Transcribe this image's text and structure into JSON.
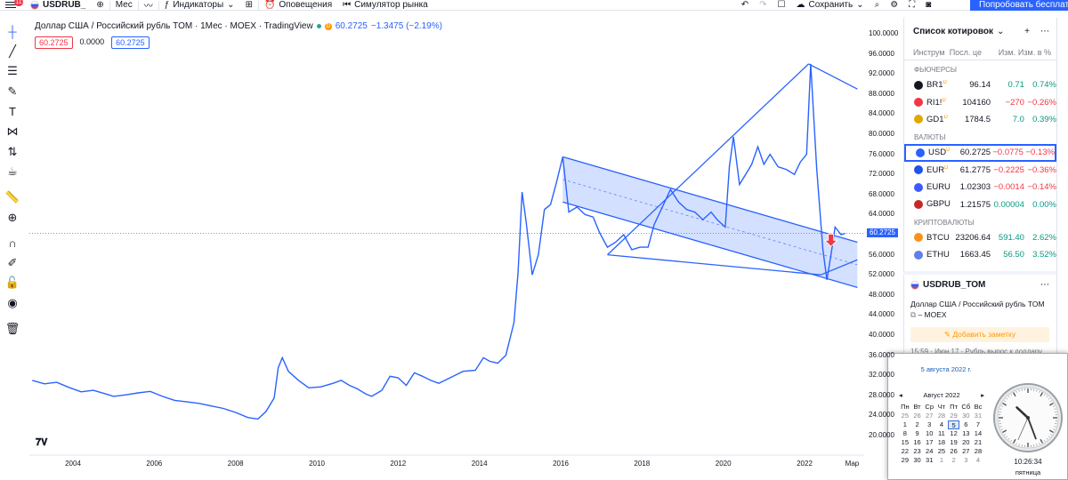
{
  "topbar": {
    "notifications_badge": "11",
    "symbol": "USDRUB_",
    "interval": "Мес",
    "indicators_label": "Индикаторы",
    "alerts_label": "Оповещения",
    "replay_label": "Симулятор рынка",
    "save_label": "Сохранить",
    "try_button_label": "Попробовать бесплатно"
  },
  "legend": {
    "title": "Доллар США / Российский рубль TOM · 1Мес · MOEX · TradingView",
    "live_badge": "D",
    "last": "60.2725",
    "change": "−1.3475 (−2.19%)",
    "bid": "60.2725",
    "spread": "0.0000",
    "ask": "60.2725"
  },
  "chart_data": {
    "type": "line",
    "title": "Доллар США / Российский рубль TOM · 1Мес · MOEX · TradingView",
    "x_tick_labels": [
      "2004",
      "2006",
      "2008",
      "2010",
      "2012",
      "2014",
      "2016",
      "2018",
      "2020",
      "2022",
      "Мар"
    ],
    "x_ticks": [
      2004,
      2006,
      2008,
      2010,
      2012,
      2014,
      2016,
      2018,
      2020,
      2022,
      2023.17
    ],
    "y_tick_labels": [
      "100.0000",
      "96.0000",
      "92.0000",
      "88.0000",
      "84.0000",
      "80.0000",
      "76.0000",
      "72.0000",
      "68.0000",
      "64.0000",
      "60.0000",
      "56.0000",
      "52.0000",
      "48.0000",
      "44.0000",
      "40.0000",
      "36.0000",
      "32.0000",
      "28.0000",
      "24.0000",
      "20.0000"
    ],
    "ylim": [
      18,
      100
    ],
    "xlim": [
      2002.7,
      2023.5
    ],
    "current_price_label": "60.2725",
    "current_price": 60.2725,
    "series": [
      {
        "values": [
          [
            2003.0,
            31.0
          ],
          [
            2003.3,
            30.3
          ],
          [
            2003.6,
            30.6
          ],
          [
            2003.9,
            29.6
          ],
          [
            2004.2,
            28.7
          ],
          [
            2004.5,
            29.0
          ],
          [
            2004.8,
            28.3
          ],
          [
            2005.0,
            27.8
          ],
          [
            2005.3,
            28.1
          ],
          [
            2005.6,
            28.5
          ],
          [
            2005.9,
            28.8
          ],
          [
            2006.2,
            27.8
          ],
          [
            2006.5,
            27.0
          ],
          [
            2006.8,
            26.7
          ],
          [
            2007.1,
            26.4
          ],
          [
            2007.4,
            25.9
          ],
          [
            2007.7,
            25.4
          ],
          [
            2008.0,
            24.6
          ],
          [
            2008.3,
            23.6
          ],
          [
            2008.55,
            23.3
          ],
          [
            2008.75,
            24.8
          ],
          [
            2008.95,
            27.5
          ],
          [
            2009.05,
            33.5
          ],
          [
            2009.15,
            35.5
          ],
          [
            2009.3,
            32.8
          ],
          [
            2009.55,
            31.0
          ],
          [
            2009.8,
            29.5
          ],
          [
            2010.1,
            29.7
          ],
          [
            2010.4,
            30.4
          ],
          [
            2010.6,
            31.0
          ],
          [
            2010.8,
            30.0
          ],
          [
            2011.0,
            29.3
          ],
          [
            2011.2,
            28.3
          ],
          [
            2011.35,
            27.8
          ],
          [
            2011.6,
            29.0
          ],
          [
            2011.8,
            31.8
          ],
          [
            2012.0,
            31.5
          ],
          [
            2012.2,
            30.0
          ],
          [
            2012.4,
            32.5
          ],
          [
            2012.6,
            31.8
          ],
          [
            2012.8,
            31.0
          ],
          [
            2013.0,
            30.4
          ],
          [
            2013.3,
            31.6
          ],
          [
            2013.6,
            32.8
          ],
          [
            2013.9,
            33.0
          ],
          [
            2014.1,
            35.5
          ],
          [
            2014.25,
            34.8
          ],
          [
            2014.45,
            34.4
          ],
          [
            2014.65,
            36.0
          ],
          [
            2014.85,
            42.5
          ],
          [
            2014.95,
            52.5
          ],
          [
            2015.05,
            68.5
          ],
          [
            2015.15,
            62.5
          ],
          [
            2015.3,
            52.0
          ],
          [
            2015.45,
            56.0
          ],
          [
            2015.6,
            65.0
          ],
          [
            2015.75,
            66.0
          ],
          [
            2015.9,
            70.5
          ],
          [
            2016.05,
            75.5
          ],
          [
            2016.2,
            64.5
          ],
          [
            2016.4,
            65.5
          ],
          [
            2016.6,
            64.0
          ],
          [
            2016.8,
            63.5
          ],
          [
            2016.95,
            60.5
          ],
          [
            2017.15,
            57.5
          ],
          [
            2017.35,
            58.5
          ],
          [
            2017.55,
            60.0
          ],
          [
            2017.75,
            57.0
          ],
          [
            2017.95,
            57.5
          ],
          [
            2018.15,
            57.5
          ],
          [
            2018.3,
            62.0
          ],
          [
            2018.5,
            65.5
          ],
          [
            2018.7,
            69.0
          ],
          [
            2018.9,
            66.5
          ],
          [
            2019.1,
            65.0
          ],
          [
            2019.3,
            64.5
          ],
          [
            2019.5,
            63.0
          ],
          [
            2019.7,
            64.5
          ],
          [
            2019.85,
            63.0
          ],
          [
            2020.05,
            61.5
          ],
          [
            2020.15,
            73.5
          ],
          [
            2020.25,
            79.5
          ],
          [
            2020.4,
            70.0
          ],
          [
            2020.55,
            72.0
          ],
          [
            2020.7,
            74.0
          ],
          [
            2020.85,
            77.5
          ],
          [
            2021.0,
            74.0
          ],
          [
            2021.15,
            76.0
          ],
          [
            2021.35,
            73.5
          ],
          [
            2021.55,
            73.0
          ],
          [
            2021.75,
            72.0
          ],
          [
            2021.9,
            74.5
          ],
          [
            2022.05,
            76.0
          ],
          [
            2022.15,
            94.0
          ],
          [
            2022.3,
            73.0
          ],
          [
            2022.45,
            57.0
          ],
          [
            2022.55,
            51.0
          ],
          [
            2022.65,
            56.0
          ],
          [
            2022.75,
            61.5
          ],
          [
            2022.9,
            60.0
          ],
          [
            2023.0,
            60.2725
          ]
        ]
      }
    ],
    "drawings": {
      "channel_upper": [
        [
          2016.05,
          75.5
        ],
        [
          2023.3,
          58.5
        ]
      ],
      "channel_lower": [
        [
          2016.05,
          66.5
        ],
        [
          2023.3,
          49.5
        ]
      ],
      "channel_mid": [
        [
          2016.05,
          71.0
        ],
        [
          2023.3,
          54.0
        ]
      ],
      "trend_a": [
        [
          2017.15,
          56.0
        ],
        [
          2022.1,
          94.0
        ]
      ],
      "trend_b": [
        [
          2022.1,
          94.0
        ],
        [
          2023.3,
          89.0
        ]
      ],
      "trend_c": [
        [
          2017.15,
          56.0
        ],
        [
          2022.4,
          52.0
        ]
      ],
      "trend_d": [
        [
          2022.4,
          52.0
        ],
        [
          2023.3,
          55.0
        ]
      ],
      "arrow_down": [
        2022.65,
        58.0
      ]
    }
  },
  "watchlist": {
    "title": "Список котировок",
    "columns": [
      "Инструм",
      "Посл. це",
      "Изм.",
      "Изм. в %"
    ],
    "sections": [
      {
        "name": "ФЬЮЧЕРСЫ",
        "rows": [
          {
            "icon_color": "#131722",
            "symbol": "BR1",
            "badge": "D",
            "last": "96.14",
            "chg": "0.71",
            "pct": "0.74%",
            "dir": "up"
          },
          {
            "icon_color": "#f23645",
            "symbol": "RI1!",
            "badge": "D",
            "last": "104160",
            "chg": "−270",
            "pct": "−0.26%",
            "dir": "down"
          },
          {
            "icon_color": "#e0a800",
            "symbol": "GD1",
            "badge": "D",
            "last": "1784.5",
            "chg": "7.0",
            "pct": "0.39%",
            "dir": "up"
          }
        ]
      },
      {
        "name": "ВАЛЮТЫ",
        "rows": [
          {
            "icon_color": "#2962ff",
            "symbol": "USD",
            "badge": "D",
            "last": "60.2725",
            "chg": "−0.0775",
            "pct": "−0.13%",
            "dir": "down",
            "selected": true
          },
          {
            "icon_color": "#1e53e5",
            "symbol": "EUR",
            "badge": "D",
            "last": "61.2775",
            "chg": "−0.2225",
            "pct": "−0.36%",
            "dir": "down"
          },
          {
            "icon_color": "#3d5afe",
            "symbol": "EURU",
            "badge": "",
            "last": "1.02303",
            "chg": "−0.0014",
            "pct": "−0.14%",
            "dir": "down"
          },
          {
            "icon_color": "#c62828",
            "symbol": "GBPU",
            "badge": "",
            "last": "1.21575",
            "chg": "0.00004",
            "pct": "0.00%",
            "dir": "up"
          }
        ]
      },
      {
        "name": "КРИПТОВАЛЮТЫ",
        "rows": [
          {
            "icon_color": "#f7931a",
            "symbol": "BTCU",
            "badge": "",
            "last": "23206.64",
            "chg": "591.40",
            "pct": "2.62%",
            "dir": "up"
          },
          {
            "icon_color": "#627eea",
            "symbol": "ETHU",
            "badge": "",
            "last": "1663.45",
            "chg": "56.50",
            "pct": "3.52%",
            "dir": "up"
          }
        ]
      }
    ]
  },
  "details": {
    "symbol": "USDRUB_TOM",
    "description": "Доллар США / Российский рубль TOM",
    "exchange": "MOEX",
    "note_button": "Добавить заметку",
    "news": "15:59 · Июн 17 · Рубль вырос к доллару"
  },
  "clock": {
    "date_link": "5 августа 2022 г.",
    "month_label": "Август 2022",
    "weekdays": [
      "Пн",
      "Вт",
      "Ср",
      "Чт",
      "Пт",
      "Сб",
      "Вс"
    ],
    "days": [
      [
        "25",
        "26",
        "27",
        "28",
        "29",
        "30",
        "31"
      ],
      [
        "1",
        "2",
        "3",
        "4",
        "5",
        "6",
        "7"
      ],
      [
        "8",
        "9",
        "10",
        "11",
        "12",
        "13",
        "14"
      ],
      [
        "15",
        "16",
        "17",
        "18",
        "19",
        "20",
        "21"
      ],
      [
        "22",
        "23",
        "24",
        "25",
        "26",
        "27",
        "28"
      ],
      [
        "29",
        "30",
        "31",
        "1",
        "2",
        "3",
        "4"
      ]
    ],
    "today": "5",
    "time": "10:26:34",
    "day_name": "пятница"
  }
}
